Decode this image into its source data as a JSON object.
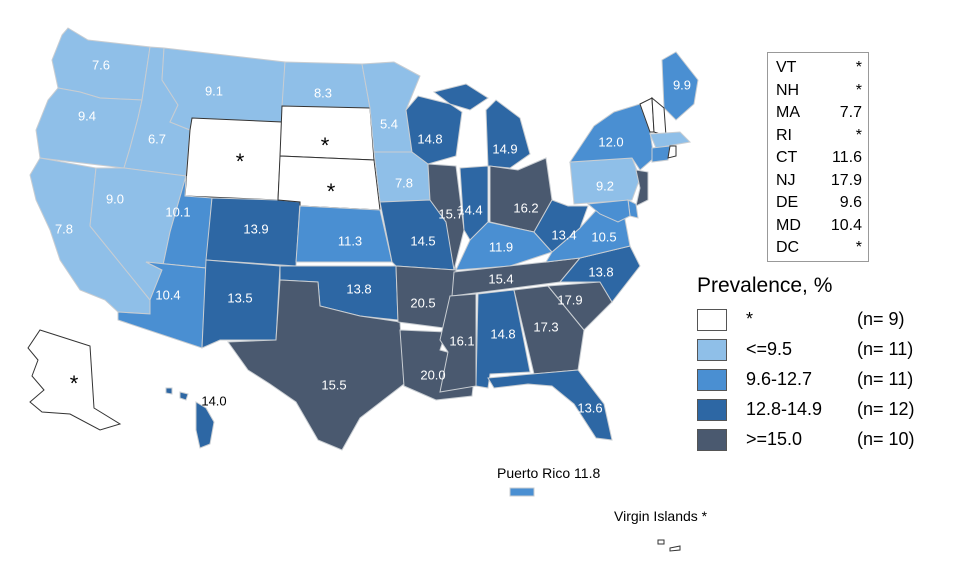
{
  "colors": {
    "none": "#ffffff",
    "low": "#8fbfe8",
    "mid": "#4a8fd2",
    "high": "#2d67a4",
    "top": "#4a596f"
  },
  "states": [
    {
      "id": "WA",
      "value": "7.6",
      "class": "low"
    },
    {
      "id": "OR",
      "value": "9.4",
      "class": "low"
    },
    {
      "id": "CA",
      "value": "7.8",
      "class": "low"
    },
    {
      "id": "ID",
      "value": "6.7",
      "class": "low"
    },
    {
      "id": "NV",
      "value": "9.0",
      "class": "low"
    },
    {
      "id": "MT",
      "value": "9.1",
      "class": "low"
    },
    {
      "id": "WY",
      "value": "*",
      "class": "none"
    },
    {
      "id": "UT",
      "value": "10.1",
      "class": "mid"
    },
    {
      "id": "AZ",
      "value": "10.4",
      "class": "mid"
    },
    {
      "id": "CO",
      "value": "13.9",
      "class": "high"
    },
    {
      "id": "NM",
      "value": "13.5",
      "class": "high"
    },
    {
      "id": "ND",
      "value": "8.3",
      "class": "low"
    },
    {
      "id": "SD",
      "value": "*",
      "class": "none"
    },
    {
      "id": "NE",
      "value": "*",
      "class": "none"
    },
    {
      "id": "KS",
      "value": "11.3",
      "class": "mid"
    },
    {
      "id": "OK",
      "value": "13.8",
      "class": "high"
    },
    {
      "id": "TX",
      "value": "15.5",
      "class": "top"
    },
    {
      "id": "MN",
      "value": "5.4",
      "class": "low"
    },
    {
      "id": "IA",
      "value": "7.8",
      "class": "low"
    },
    {
      "id": "MO",
      "value": "14.5",
      "class": "high"
    },
    {
      "id": "AR",
      "value": "20.5",
      "class": "top"
    },
    {
      "id": "LA",
      "value": "20.0",
      "class": "top"
    },
    {
      "id": "WI",
      "value": "14.8",
      "class": "high"
    },
    {
      "id": "IL",
      "value": "15.7",
      "class": "top"
    },
    {
      "id": "MI",
      "value": "14.9",
      "class": "high"
    },
    {
      "id": "IN",
      "value": "14.4",
      "class": "high"
    },
    {
      "id": "OH",
      "value": "16.2",
      "class": "top"
    },
    {
      "id": "KY",
      "value": "11.9",
      "class": "mid"
    },
    {
      "id": "TN",
      "value": "15.4",
      "class": "top"
    },
    {
      "id": "MS",
      "value": "16.1",
      "class": "top"
    },
    {
      "id": "AL",
      "value": "14.8",
      "class": "high"
    },
    {
      "id": "GA",
      "value": "17.3",
      "class": "top"
    },
    {
      "id": "FL",
      "value": "13.6",
      "class": "high"
    },
    {
      "id": "SC",
      "value": "17.9",
      "class": "top"
    },
    {
      "id": "NC",
      "value": "13.8",
      "class": "high"
    },
    {
      "id": "VA",
      "value": "10.5",
      "class": "mid"
    },
    {
      "id": "WV",
      "value": "13.4",
      "class": "high"
    },
    {
      "id": "PA",
      "value": "9.2",
      "class": "low"
    },
    {
      "id": "NY",
      "value": "12.0",
      "class": "mid"
    },
    {
      "id": "ME",
      "value": "9.9",
      "class": "mid"
    },
    {
      "id": "AK",
      "value": "*",
      "class": "none"
    },
    {
      "id": "HI",
      "value": "14.0",
      "class": "high"
    }
  ],
  "inset": [
    {
      "abbr": "VT",
      "value": "*"
    },
    {
      "abbr": "NH",
      "value": "*"
    },
    {
      "abbr": "MA",
      "value": "7.7"
    },
    {
      "abbr": "RI",
      "value": "*"
    },
    {
      "abbr": "CT",
      "value": "11.6"
    },
    {
      "abbr": "NJ",
      "value": "17.9"
    },
    {
      "abbr": "DE",
      "value": "9.6"
    },
    {
      "abbr": "MD",
      "value": "10.4"
    },
    {
      "abbr": "DC",
      "value": "*"
    }
  ],
  "legend": {
    "title": "Prevalence, %",
    "items": [
      {
        "range": "*",
        "count": "(n=  9)",
        "class": "none"
      },
      {
        "range": "<=9.5",
        "count": "(n= 11)",
        "class": "low"
      },
      {
        "range": "9.6-12.7",
        "count": "(n= 11)",
        "class": "mid"
      },
      {
        "range": "12.8-14.9",
        "count": "(n= 12)",
        "class": "high"
      },
      {
        "range": ">=15.0",
        "count": "(n= 10)",
        "class": "top"
      }
    ]
  },
  "territories": {
    "puerto_rico": "Puerto Rico 11.8",
    "virgin_islands": "Virgin Islands *"
  }
}
